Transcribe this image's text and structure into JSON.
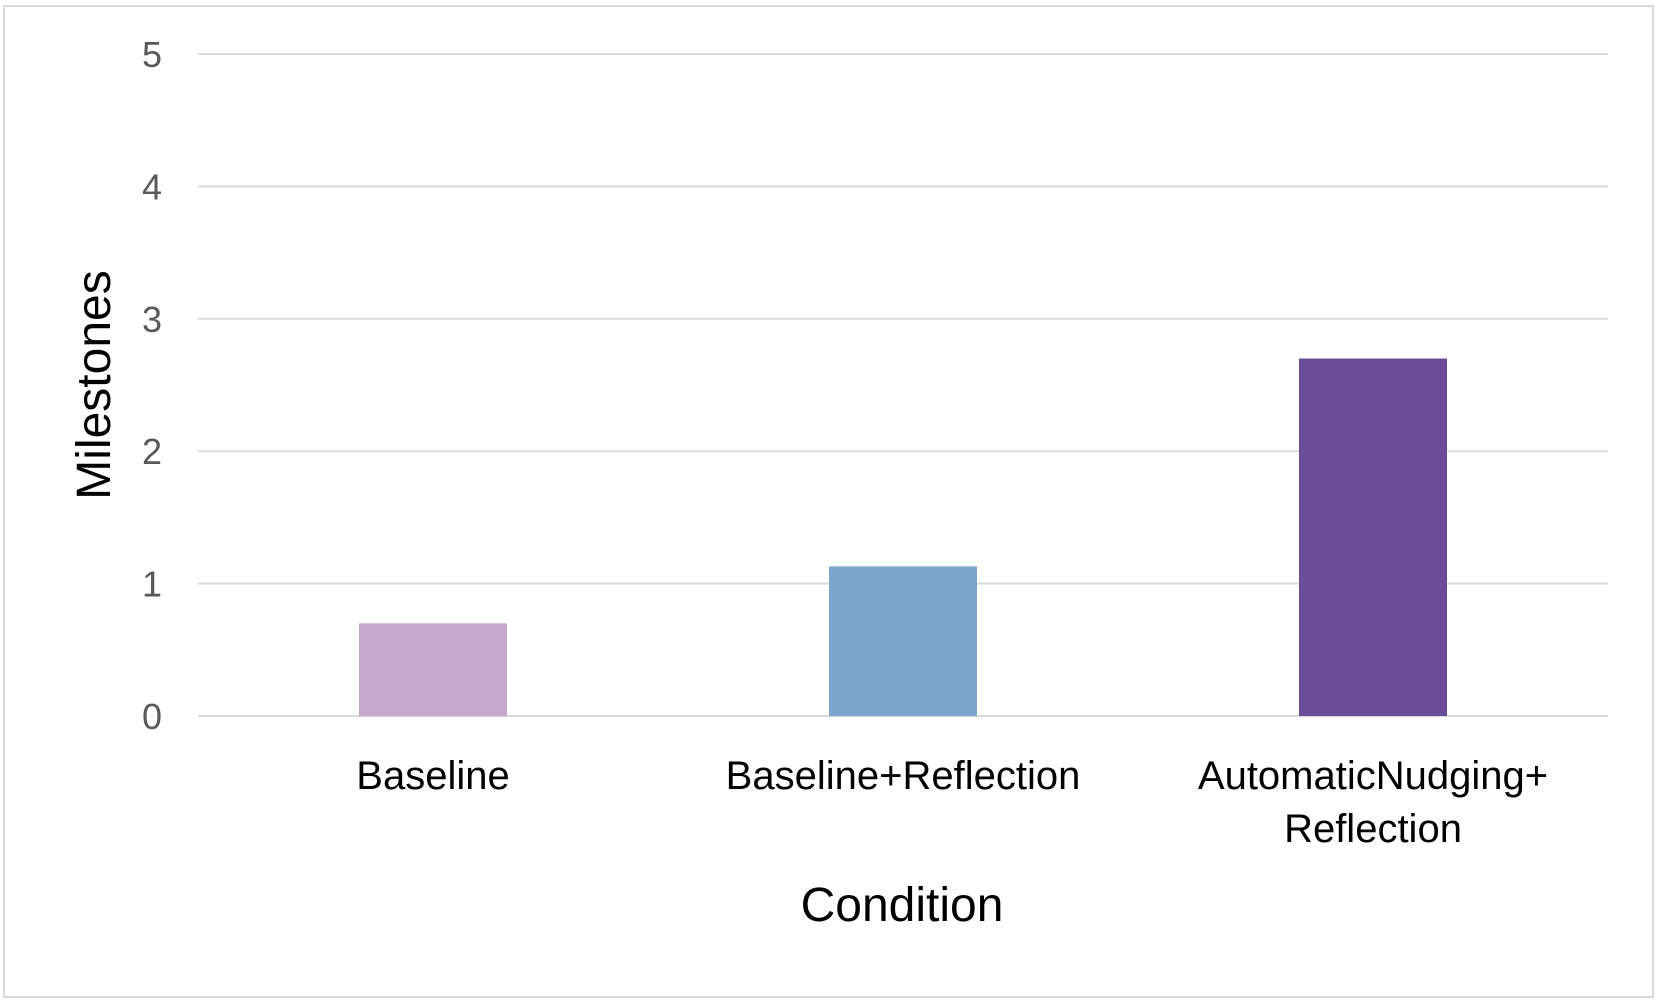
{
  "chart_data": {
    "type": "bar",
    "title": "",
    "xlabel": "Condition",
    "ylabel": "Milestones",
    "categories": [
      [
        "Baseline"
      ],
      [
        "Baseline+Reflection"
      ],
      [
        "AutomaticNudging+",
        "Reflection"
      ]
    ],
    "values": [
      0.7,
      1.13,
      2.7
    ],
    "colors": [
      "#c8a7cf",
      "#7ea3cc",
      "#6a4c99"
    ],
    "ylim": [
      0,
      5
    ],
    "yticks": [
      0,
      1,
      2,
      3,
      4,
      5
    ],
    "grid": true,
    "gridline_color": "#d9d9d9",
    "legend": "none"
  }
}
